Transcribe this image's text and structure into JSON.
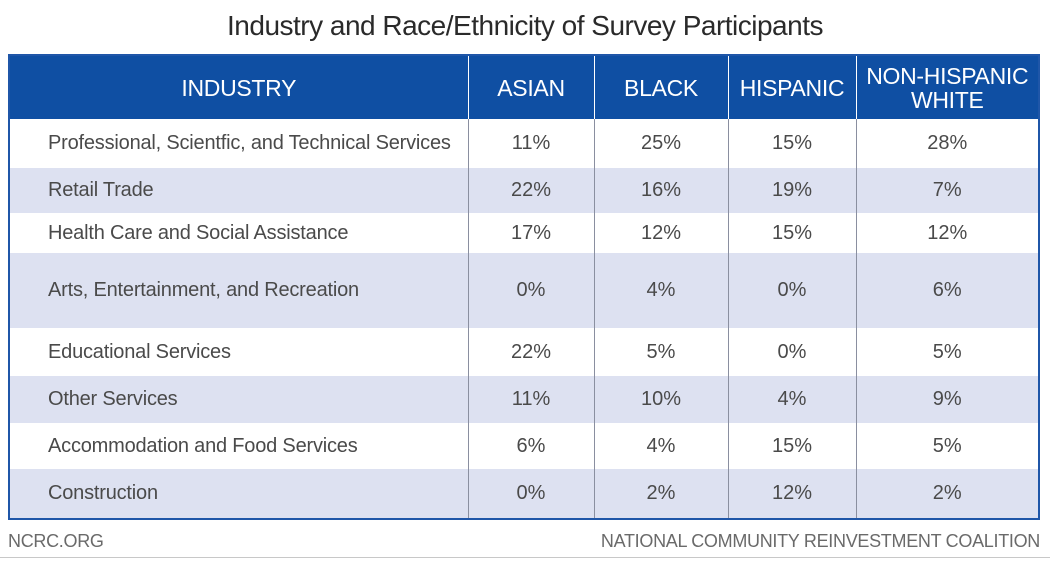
{
  "chart_data": {
    "type": "table",
    "title": "Industry and Race/Ethnicity of Survey Participants",
    "columns": [
      "INDUSTRY",
      "ASIAN",
      "BLACK",
      "HISPANIC",
      "NON-HISPANIC WHITE"
    ],
    "rows": [
      [
        "Professional, Scientfic, and Technical Services",
        "11%",
        "25%",
        "15%",
        "28%"
      ],
      [
        "Retail Trade",
        "22%",
        "16%",
        "19%",
        "7%"
      ],
      [
        "Health Care and Social Assistance",
        "17%",
        "12%",
        "15%",
        "12%"
      ],
      [
        "Arts, Entertainment, and Recreation",
        "0%",
        "4%",
        "0%",
        "6%"
      ],
      [
        "Educational Services",
        "22%",
        "5%",
        "0%",
        "5%"
      ],
      [
        "Other Services",
        "11%",
        "10%",
        "4%",
        "9%"
      ],
      [
        "Accommodation and Food Services",
        "6%",
        "4%",
        "15%",
        "5%"
      ],
      [
        "Construction",
        "0%",
        "2%",
        "12%",
        "2%"
      ]
    ]
  },
  "footer": {
    "left": "NCRC.ORG",
    "right": "NATIONAL COMMUNITY REINVESTMENT COALITION"
  },
  "colors": {
    "header_bg": "#0f4fa3",
    "stripe": "#dde1f1"
  }
}
